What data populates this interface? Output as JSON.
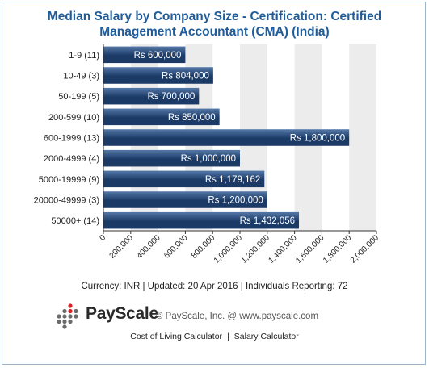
{
  "colors": {
    "title": "#1f5c99",
    "bar_dark": "#1b3a66",
    "bar_light": "#5478a8",
    "band": "#ececec",
    "logo_red": "#d2232a",
    "logo_gray": "#6b6b6b"
  },
  "footer": {
    "meta": "Currency: INR  |  Updated: 20 Apr 2016  |  Individuals Reporting: 72",
    "brand": "PayScale",
    "copyright": "© PayScale, Inc. @ www.payscale.com",
    "links": [
      "Cost of Living Calculator",
      "Salary Calculator"
    ],
    "logo_icon": "payscale-dot-grid-icon"
  },
  "chart_data": {
    "type": "bar",
    "orientation": "horizontal",
    "title": [
      "Median Salary by Company Size - Certification: Certified",
      "Management Accountant (CMA) (India)"
    ],
    "categories": [
      "1-9 (11)",
      "10-49 (3)",
      "50-199 (5)",
      "200-599 (10)",
      "600-1999 (13)",
      "2000-4999 (4)",
      "5000-19999 (9)",
      "20000-49999 (3)",
      "50000+ (14)"
    ],
    "values": [
      600000,
      804000,
      700000,
      850000,
      1800000,
      1000000,
      1179162,
      1200000,
      1432056
    ],
    "data_labels": [
      "Rs 600,000",
      "Rs 804,000",
      "Rs 700,000",
      "Rs 850,000",
      "Rs 1,800,000",
      "Rs 1,000,000",
      "Rs 1,179,162",
      "Rs 1,200,000",
      "Rs 1,432,056"
    ],
    "xlim": [
      0,
      2000000
    ],
    "x_ticks": [
      0,
      200000,
      400000,
      600000,
      800000,
      1000000,
      1200000,
      1400000,
      1600000,
      1800000,
      2000000
    ],
    "x_tick_labels": [
      "0",
      "200,000",
      "400,000",
      "600,000",
      "800,000",
      "1,000,000",
      "1,200,000",
      "1,400,000",
      "1,600,000",
      "1,800,000",
      "2,000,000"
    ],
    "alternating_bands": true,
    "grid": false,
    "legend": "none"
  }
}
